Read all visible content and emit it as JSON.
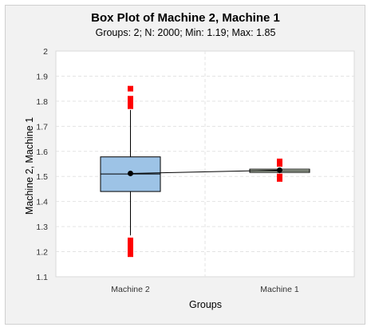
{
  "chart_data": {
    "type": "box",
    "title": "Box Plot of Machine 2, Machine 1",
    "subtitle": "Groups: 2; N: 2000; Min: 1.19; Max: 1.85",
    "xlabel": "Groups",
    "ylabel": "Machine 2, Machine 1",
    "ylim": [
      1.1,
      2.0
    ],
    "yticks": [
      "1.1",
      "1.2",
      "1.3",
      "1.4",
      "1.5",
      "1.6",
      "1.7",
      "1.8",
      "1.9",
      "2"
    ],
    "grid": true,
    "categories": [
      "Machine 2",
      "Machine 1"
    ],
    "series": [
      {
        "category": "Machine 2",
        "min": 1.265,
        "q1": 1.44,
        "median": 1.51,
        "q3": 1.578,
        "max": 1.765,
        "mean": 1.512,
        "outliers": [
          1.19,
          1.2,
          1.21,
          1.22,
          1.235,
          1.245,
          1.78,
          1.79,
          1.8,
          1.81,
          1.85
        ],
        "color": "#9dc3e6"
      },
      {
        "category": "Machine 1",
        "min": 1.513,
        "q1": 1.516,
        "median": 1.522,
        "q3": 1.529,
        "max": 1.533,
        "mean": 1.525,
        "outliers": [
          1.49,
          1.5,
          1.55,
          1.56
        ],
        "color": "#e2efda"
      }
    ],
    "outlier_color": "#ff0000"
  }
}
